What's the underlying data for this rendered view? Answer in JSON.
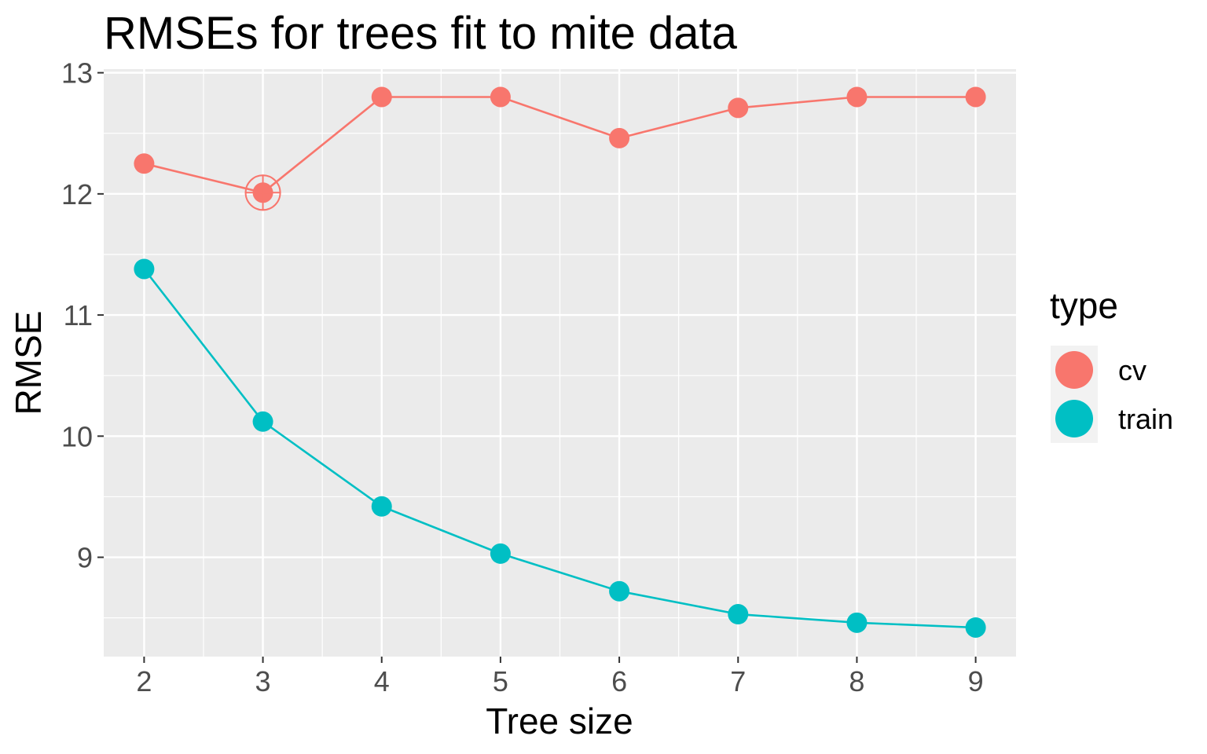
{
  "chart_data": {
    "type": "line",
    "title": "RMSEs for trees fit to mite data",
    "xlabel": "Tree size",
    "ylabel": "RMSE",
    "x": [
      2,
      3,
      4,
      5,
      6,
      7,
      8,
      9
    ],
    "xlim": [
      1.66,
      9.34
    ],
    "ylim": [
      8.18,
      13.03
    ],
    "x_ticks": [
      2,
      3,
      4,
      5,
      6,
      7,
      8,
      9
    ],
    "y_ticks": [
      9,
      10,
      11,
      12,
      13
    ],
    "grid": true,
    "legend": {
      "title": "type",
      "position": "right"
    },
    "series": [
      {
        "name": "cv",
        "color": "#F8766D",
        "values": [
          12.25,
          12.01,
          12.8,
          12.8,
          12.46,
          12.71,
          12.8,
          12.8
        ]
      },
      {
        "name": "train",
        "color": "#00BFC4",
        "values": [
          11.38,
          10.12,
          9.42,
          9.03,
          8.72,
          8.53,
          8.46,
          8.42
        ]
      }
    ],
    "highlight": {
      "series": "cv",
      "x": 3,
      "y": 12.01,
      "marker": "circle-crosshair"
    },
    "panel_background": "#EBEBEB",
    "grid_color": "#FFFFFF"
  }
}
